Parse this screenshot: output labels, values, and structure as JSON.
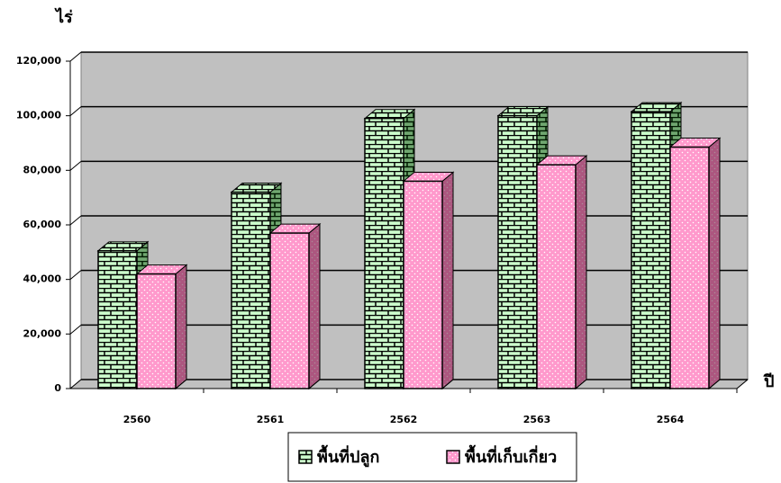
{
  "chart_data": {
    "type": "bar3d",
    "y_label": "ไร่",
    "x_label": "ปี",
    "categories": [
      "2560",
      "2561",
      "2562",
      "2563",
      "2564"
    ],
    "series": [
      {
        "name": "พื้นที่ปลูก",
        "color": "#ccffcc",
        "values": [
          50500,
          72000,
          99000,
          100000,
          101500
        ]
      },
      {
        "name": "พื้นที่เก็บเกี่ยว",
        "color": "#ff99cc",
        "values": [
          42000,
          57000,
          76000,
          82000,
          88500
        ]
      }
    ],
    "ylim": [
      0,
      120000
    ],
    "yticks": [
      0,
      {
        "value": 20000,
        "label": "20,000"
      },
      {
        "value": 40000,
        "label": "40,000"
      },
      {
        "value": 60000,
        "label": "60,000"
      },
      {
        "value": 80000,
        "label": "80,000"
      },
      {
        "value": 100000,
        "label": "100,000"
      },
      {
        "value": 120000,
        "label": "120,000"
      }
    ],
    "grid": true,
    "legend": "bottom"
  }
}
